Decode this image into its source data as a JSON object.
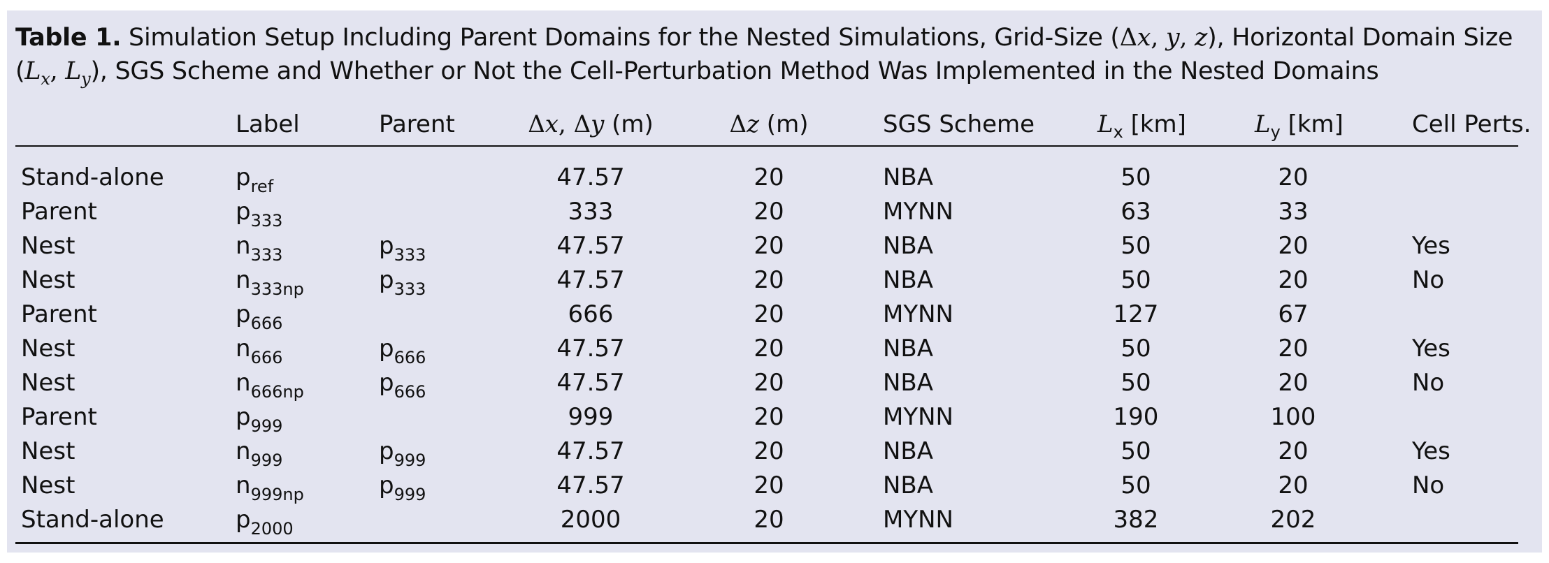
{
  "caption": {
    "label": "Table 1.",
    "text_1": " Simulation Setup Including Parent Domains for the Nested Simulations, Grid-Size (",
    "math_1_a": "Δ",
    "math_1_b": "x",
    "math_1_c": ", ",
    "math_1_d": "y",
    "math_1_e": ", ",
    "math_1_f": "z",
    "text_2": "), Horizontal Domain Size (",
    "math_2_a": "L",
    "math_2_a_sub": "x",
    "math_2_b": ", ",
    "math_2_c": "L",
    "math_2_c_sub": "y",
    "text_3": "), SGS Scheme and Whether or Not the Cell-Perturbation Method Was Implemented in the Nested Domains"
  },
  "header": {
    "label": "Label",
    "parent": "Parent",
    "dx_delta1": "Δ",
    "dx_var1": "x",
    "dx_sep": ", ",
    "dx_delta2": "Δ",
    "dx_var2": "y",
    "dx_unit": " (m)",
    "dz_delta": "Δ",
    "dz_var": "z",
    "dz_unit": " (m)",
    "sgs": "SGS Scheme",
    "lx_base": "L",
    "lx_sub": "x",
    "lx_unit": " [km]",
    "ly_base": "L",
    "ly_sub": "y",
    "ly_unit": " [km]",
    "cell_perts": "Cell Perts."
  },
  "rows": [
    {
      "type": "Stand-alone",
      "label_base": "p",
      "label_sub": "ref",
      "parent_base": "",
      "parent_sub": "",
      "dx": "47.57",
      "dz": "20",
      "sgs": "NBA",
      "lx": "50",
      "ly": "20",
      "cell": ""
    },
    {
      "type": "Parent",
      "label_base": "p",
      "label_sub": "333",
      "parent_base": "",
      "parent_sub": "",
      "dx": "333",
      "dz": "20",
      "sgs": "MYNN",
      "lx": "63",
      "ly": "33",
      "cell": ""
    },
    {
      "type": "Nest",
      "label_base": "n",
      "label_sub": "333",
      "parent_base": "p",
      "parent_sub": "333",
      "dx": "47.57",
      "dz": "20",
      "sgs": "NBA",
      "lx": "50",
      "ly": "20",
      "cell": "Yes"
    },
    {
      "type": "Nest",
      "label_base": "n",
      "label_sub": "333np",
      "parent_base": "p",
      "parent_sub": "333",
      "dx": "47.57",
      "dz": "20",
      "sgs": "NBA",
      "lx": "50",
      "ly": "20",
      "cell": "No"
    },
    {
      "type": "Parent",
      "label_base": "p",
      "label_sub": "666",
      "parent_base": "",
      "parent_sub": "",
      "dx": "666",
      "dz": "20",
      "sgs": "MYNN",
      "lx": "127",
      "ly": "67",
      "cell": ""
    },
    {
      "type": "Nest",
      "label_base": "n",
      "label_sub": "666",
      "parent_base": "p",
      "parent_sub": "666",
      "dx": "47.57",
      "dz": "20",
      "sgs": "NBA",
      "lx": "50",
      "ly": "20",
      "cell": "Yes"
    },
    {
      "type": "Nest",
      "label_base": "n",
      "label_sub": "666np",
      "parent_base": "p",
      "parent_sub": "666",
      "dx": "47.57",
      "dz": "20",
      "sgs": "NBA",
      "lx": "50",
      "ly": "20",
      "cell": "No"
    },
    {
      "type": "Parent",
      "label_base": "p",
      "label_sub": "999",
      "parent_base": "",
      "parent_sub": "",
      "dx": "999",
      "dz": "20",
      "sgs": "MYNN",
      "lx": "190",
      "ly": "100",
      "cell": ""
    },
    {
      "type": "Nest",
      "label_base": "n",
      "label_sub": "999",
      "parent_base": "p",
      "parent_sub": "999",
      "dx": "47.57",
      "dz": "20",
      "sgs": "NBA",
      "lx": "50",
      "ly": "20",
      "cell": "Yes"
    },
    {
      "type": "Nest",
      "label_base": "n",
      "label_sub": "999np",
      "parent_base": "p",
      "parent_sub": "999",
      "dx": "47.57",
      "dz": "20",
      "sgs": "NBA",
      "lx": "50",
      "ly": "20",
      "cell": "No"
    },
    {
      "type": "Stand-alone",
      "label_base": "p",
      "label_sub": "2000",
      "parent_base": "",
      "parent_sub": "",
      "dx": "2000",
      "dz": "20",
      "sgs": "MYNN",
      "lx": "382",
      "ly": "202",
      "cell": ""
    }
  ]
}
